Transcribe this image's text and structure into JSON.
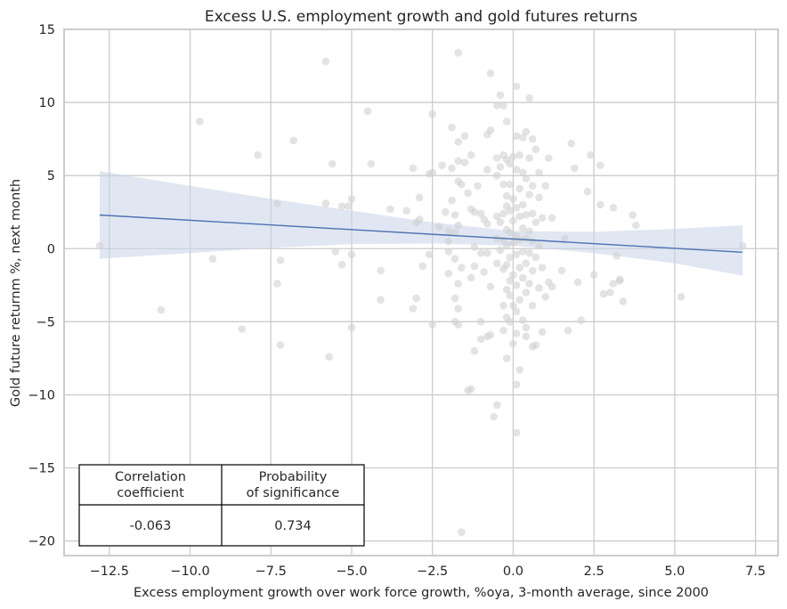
{
  "chart_data": {
    "type": "scatter",
    "title": "Excess U.S. employment growth and gold futures returns",
    "xlabel": "Excess employment growth over work force growth, %oya, 3-month average, since 2000",
    "ylabel": "Gold future returnm %, next month",
    "xlim": [
      -13.9,
      8.2
    ],
    "ylim": [
      -21.0,
      15.0
    ],
    "xticks": [
      -12.5,
      -10.0,
      -7.5,
      -5.0,
      -2.5,
      0.0,
      2.5,
      5.0,
      7.5
    ],
    "xtick_labels": [
      "−12.5",
      "−10.0",
      "−7.5",
      "−5.0",
      "−2.5",
      "0.0",
      "2.5",
      "5.0",
      "7.5"
    ],
    "yticks": [
      15,
      10,
      5,
      0,
      -5,
      -10,
      -15,
      -20
    ],
    "ytick_labels": [
      "15",
      "10",
      "5",
      "0",
      "−5",
      "−10",
      "−15",
      "−20"
    ],
    "grid": true,
    "points": [
      [
        -12.8,
        0.2
      ],
      [
        -10.9,
        -4.2
      ],
      [
        -9.7,
        8.7
      ],
      [
        -9.3,
        -0.7
      ],
      [
        -8.4,
        -5.5
      ],
      [
        -7.9,
        6.4
      ],
      [
        -7.3,
        3.1
      ],
      [
        -7.3,
        -2.4
      ],
      [
        -7.2,
        -0.8
      ],
      [
        -7.2,
        -6.6
      ],
      [
        -6.8,
        7.4
      ],
      [
        -5.8,
        12.8
      ],
      [
        -5.8,
        3.1
      ],
      [
        -5.7,
        -7.4
      ],
      [
        -5.6,
        5.8
      ],
      [
        -5.5,
        -0.2
      ],
      [
        -5.3,
        2.9
      ],
      [
        -5.3,
        -1.1
      ],
      [
        -5.1,
        2.9
      ],
      [
        -5.0,
        3.4
      ],
      [
        -5.0,
        -0.4
      ],
      [
        -5.0,
        -5.4
      ],
      [
        -4.5,
        9.4
      ],
      [
        -4.4,
        5.8
      ],
      [
        -4.1,
        -1.5
      ],
      [
        -4.1,
        -3.5
      ],
      [
        -3.8,
        2.7
      ],
      [
        -3.3,
        2.6
      ],
      [
        -3.1,
        5.5
      ],
      [
        -3.1,
        -4.1
      ],
      [
        -3.0,
        1.8
      ],
      [
        -3.0,
        -3.4
      ],
      [
        -2.9,
        3.5
      ],
      [
        -2.9,
        2.0
      ],
      [
        -2.8,
        -1.2
      ],
      [
        -2.6,
        5.1
      ],
      [
        -2.6,
        -0.4
      ],
      [
        -2.5,
        9.2
      ],
      [
        -2.5,
        5.2
      ],
      [
        -2.5,
        -5.2
      ],
      [
        -2.3,
        1.5
      ],
      [
        -2.2,
        5.7
      ],
      [
        -2.1,
        2.5
      ],
      [
        -2.0,
        1.2
      ],
      [
        -2.0,
        0.5
      ],
      [
        -2.0,
        -0.2
      ],
      [
        -2.0,
        -1.7
      ],
      [
        -1.9,
        8.3
      ],
      [
        -1.9,
        5.5
      ],
      [
        -1.9,
        3.3
      ],
      [
        -1.8,
        2.3
      ],
      [
        -1.8,
        1.1
      ],
      [
        -1.8,
        -0.7
      ],
      [
        -1.8,
        -3.4
      ],
      [
        -1.8,
        -5.0
      ],
      [
        -1.7,
        13.4
      ],
      [
        -1.7,
        7.3
      ],
      [
        -1.7,
        6.0
      ],
      [
        -1.7,
        4.6
      ],
      [
        -1.7,
        1.6
      ],
      [
        -1.7,
        -2.4
      ],
      [
        -1.7,
        -4.1
      ],
      [
        -1.7,
        -5.2
      ],
      [
        -1.6,
        -19.4
      ],
      [
        -1.6,
        4.4
      ],
      [
        -1.6,
        -1.3
      ],
      [
        -1.5,
        7.7
      ],
      [
        -1.5,
        5.9
      ],
      [
        -1.4,
        3.8
      ],
      [
        -1.4,
        -9.7
      ],
      [
        -1.3,
        6.4
      ],
      [
        -1.3,
        2.7
      ],
      [
        -1.3,
        -2.0
      ],
      [
        -1.3,
        -9.6
      ],
      [
        -1.2,
        2.5
      ],
      [
        -1.2,
        0.1
      ],
      [
        -1.2,
        -1.2
      ],
      [
        -1.2,
        -7.0
      ],
      [
        -1.1,
        4.3
      ],
      [
        -1.0,
        2.4
      ],
      [
        -1.0,
        -0.3
      ],
      [
        -1.0,
        -5.0
      ],
      [
        -1.0,
        -6.2
      ],
      [
        -0.9,
        2.0
      ],
      [
        -0.9,
        -1.6
      ],
      [
        -0.8,
        7.8
      ],
      [
        -0.8,
        5.4
      ],
      [
        -0.8,
        1.7
      ],
      [
        -0.8,
        -0.3
      ],
      [
        -0.8,
        -6.0
      ],
      [
        -0.7,
        12.0
      ],
      [
        -0.7,
        8.1
      ],
      [
        -0.7,
        -2.6
      ],
      [
        -0.7,
        -5.9
      ],
      [
        -0.6,
        -11.5
      ],
      [
        -0.5,
        9.8
      ],
      [
        -0.5,
        6.2
      ],
      [
        -0.5,
        5.0
      ],
      [
        -0.5,
        2.2
      ],
      [
        -0.5,
        0.7
      ],
      [
        -0.5,
        -1.0
      ],
      [
        -0.5,
        -10.7
      ],
      [
        -0.4,
        10.5
      ],
      [
        -0.4,
        5.6
      ],
      [
        -0.4,
        1.8
      ],
      [
        -0.4,
        -0.1
      ],
      [
        -0.3,
        9.8
      ],
      [
        -0.3,
        6.4
      ],
      [
        -0.3,
        4.4
      ],
      [
        -0.3,
        2.4
      ],
      [
        -0.3,
        0.6
      ],
      [
        -0.3,
        -1.4
      ],
      [
        -0.3,
        -3.9
      ],
      [
        -0.3,
        -5.6
      ],
      [
        -0.2,
        8.7
      ],
      [
        -0.2,
        6.1
      ],
      [
        -0.2,
        3.6
      ],
      [
        -0.2,
        2.9
      ],
      [
        -0.2,
        1.3
      ],
      [
        -0.2,
        0.2
      ],
      [
        -0.2,
        -1.1
      ],
      [
        -0.2,
        -2.8
      ],
      [
        -0.2,
        -4.7
      ],
      [
        -0.2,
        -7.5
      ],
      [
        -0.1,
        5.8
      ],
      [
        -0.1,
        4.4
      ],
      [
        -0.1,
        2.6
      ],
      [
        -0.1,
        1.1
      ],
      [
        -0.1,
        -0.6
      ],
      [
        -0.1,
        -2.2
      ],
      [
        -0.1,
        -3.2
      ],
      [
        -0.1,
        -5.0
      ],
      [
        0.0,
        6.3
      ],
      [
        0.0,
        3.4
      ],
      [
        0.0,
        1.9
      ],
      [
        0.0,
        0.4
      ],
      [
        0.0,
        -1.8
      ],
      [
        0.0,
        -3.9
      ],
      [
        0.0,
        -6.5
      ],
      [
        0.1,
        11.1
      ],
      [
        0.1,
        7.7
      ],
      [
        0.1,
        5.4
      ],
      [
        0.1,
        2.8
      ],
      [
        0.1,
        0.9
      ],
      [
        0.1,
        -0.4
      ],
      [
        0.1,
        -2.5
      ],
      [
        0.1,
        -4.3
      ],
      [
        0.1,
        -5.8
      ],
      [
        0.1,
        -9.3
      ],
      [
        0.1,
        -12.6
      ],
      [
        0.2,
        6.4
      ],
      [
        0.2,
        4.1
      ],
      [
        0.2,
        2.2
      ],
      [
        0.2,
        0.6
      ],
      [
        0.2,
        -1.3
      ],
      [
        0.2,
        -3.5
      ],
      [
        0.2,
        -8.3
      ],
      [
        0.3,
        7.6
      ],
      [
        0.3,
        5.2
      ],
      [
        0.3,
        3.0
      ],
      [
        0.3,
        1.4
      ],
      [
        0.3,
        -0.2
      ],
      [
        0.3,
        -2.0
      ],
      [
        0.3,
        -4.9
      ],
      [
        0.4,
        8.0
      ],
      [
        0.4,
        4.8
      ],
      [
        0.4,
        2.3
      ],
      [
        0.4,
        0.7
      ],
      [
        0.4,
        -1.0
      ],
      [
        0.4,
        -3.0
      ],
      [
        0.4,
        -5.4
      ],
      [
        0.4,
        -6.0
      ],
      [
        0.5,
        10.3
      ],
      [
        0.5,
        6.2
      ],
      [
        0.5,
        3.7
      ],
      [
        0.5,
        1.2
      ],
      [
        0.5,
        -0.3
      ],
      [
        0.5,
        -2.4
      ],
      [
        0.6,
        7.5
      ],
      [
        0.6,
        4.3
      ],
      [
        0.6,
        2.4
      ],
      [
        0.6,
        0.5
      ],
      [
        0.6,
        -1.5
      ],
      [
        0.6,
        -3.9
      ],
      [
        0.6,
        -6.7
      ],
      [
        0.7,
        6.8
      ],
      [
        0.7,
        1.8
      ],
      [
        0.7,
        -0.6
      ],
      [
        0.7,
        -6.6
      ],
      [
        0.8,
        5.2
      ],
      [
        0.8,
        3.5
      ],
      [
        0.8,
        0.2
      ],
      [
        0.8,
        -2.7
      ],
      [
        0.9,
        2.1
      ],
      [
        0.9,
        -1.3
      ],
      [
        0.9,
        -5.7
      ],
      [
        1.0,
        4.3
      ],
      [
        1.0,
        -3.3
      ],
      [
        1.1,
        6.2
      ],
      [
        1.1,
        -2.3
      ],
      [
        1.2,
        2.1
      ],
      [
        1.2,
        -2.6
      ],
      [
        1.5,
        -1.5
      ],
      [
        1.6,
        0.7
      ],
      [
        1.7,
        -5.6
      ],
      [
        1.8,
        7.2
      ],
      [
        1.9,
        5.5
      ],
      [
        2.0,
        -2.3
      ],
      [
        2.1,
        -4.9
      ],
      [
        2.3,
        3.9
      ],
      [
        2.4,
        6.4
      ],
      [
        2.5,
        -1.8
      ],
      [
        2.7,
        5.7
      ],
      [
        2.7,
        3.0
      ],
      [
        2.8,
        -3.1
      ],
      [
        3.0,
        -3.0
      ],
      [
        3.1,
        2.8
      ],
      [
        3.1,
        -2.4
      ],
      [
        3.2,
        -0.5
      ],
      [
        3.3,
        -2.2
      ],
      [
        3.3,
        -2.1
      ],
      [
        3.4,
        -3.6
      ],
      [
        3.7,
        2.3
      ],
      [
        3.8,
        1.6
      ],
      [
        5.2,
        -3.3
      ],
      [
        7.1,
        0.2
      ]
    ],
    "regression": {
      "x": [
        -12.8,
        7.1
      ],
      "y": [
        2.3,
        -0.25
      ]
    },
    "confidence_band": {
      "x": [
        -12.8,
        -10.0,
        -7.5,
        -5.0,
        -2.5,
        0.0,
        2.5,
        5.0,
        7.1
      ],
      "upper": [
        5.3,
        4.3,
        3.4,
        2.6,
        1.8,
        1.2,
        1.15,
        1.35,
        1.6
      ],
      "lower": [
        -0.7,
        -0.3,
        0.05,
        0.3,
        0.35,
        0.2,
        -0.3,
        -1.0,
        -1.85
      ]
    },
    "table": {
      "headers": [
        "Correlation\ncoefficient",
        "Probability\nof significance"
      ],
      "values": [
        "-0.063",
        "0.734"
      ]
    },
    "colors": {
      "points": "#d0d0d0",
      "line": "#4c72b0",
      "band": "#c7d3e8",
      "grid": "#cccccc",
      "text": "#262626",
      "table_border": "#000000"
    }
  }
}
